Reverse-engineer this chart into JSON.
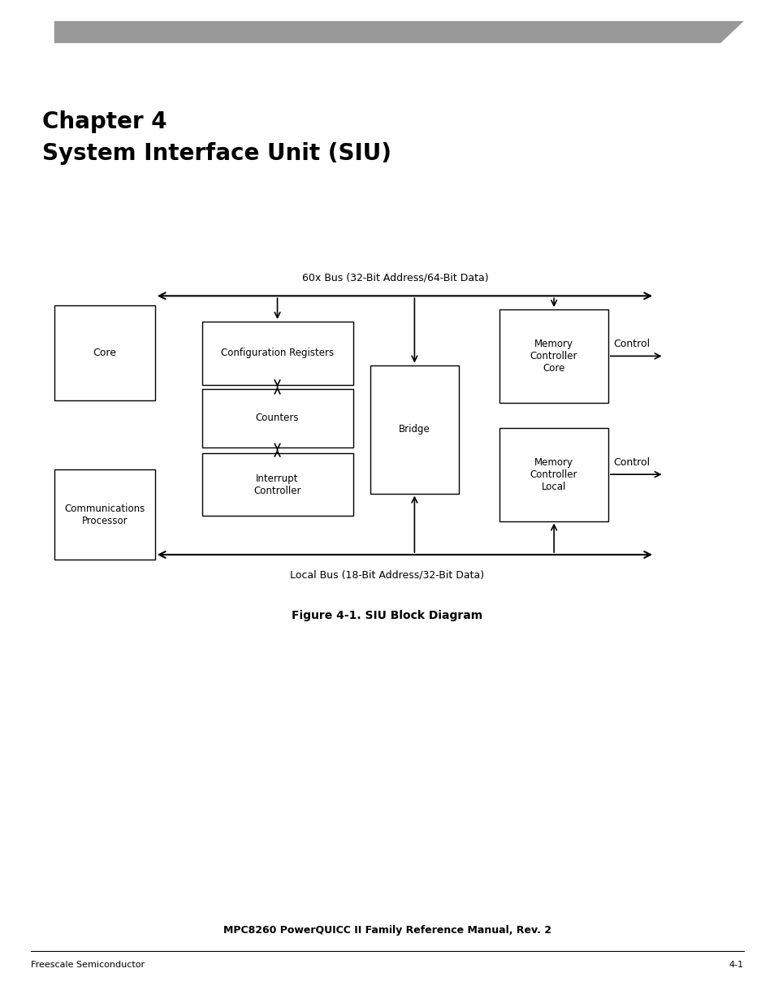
{
  "title_line1": "Chapter 4",
  "title_line2": "System Interface Unit (SIU)",
  "figure_caption": "Figure 4-1. SIU Block Diagram",
  "footer_left": "Freescale Semiconductor",
  "footer_right": "4-1",
  "header_bar_color": "#999999",
  "manual_title": "MPC8260 PowerQUICC II Family Reference Manual, Rev. 2",
  "bus_60x_label": "60x Bus (32-Bit Address/64-Bit Data)",
  "bus_local_label": "Local Bus (18-Bit Address/32-Bit Data)",
  "bg_color": "#ffffff"
}
